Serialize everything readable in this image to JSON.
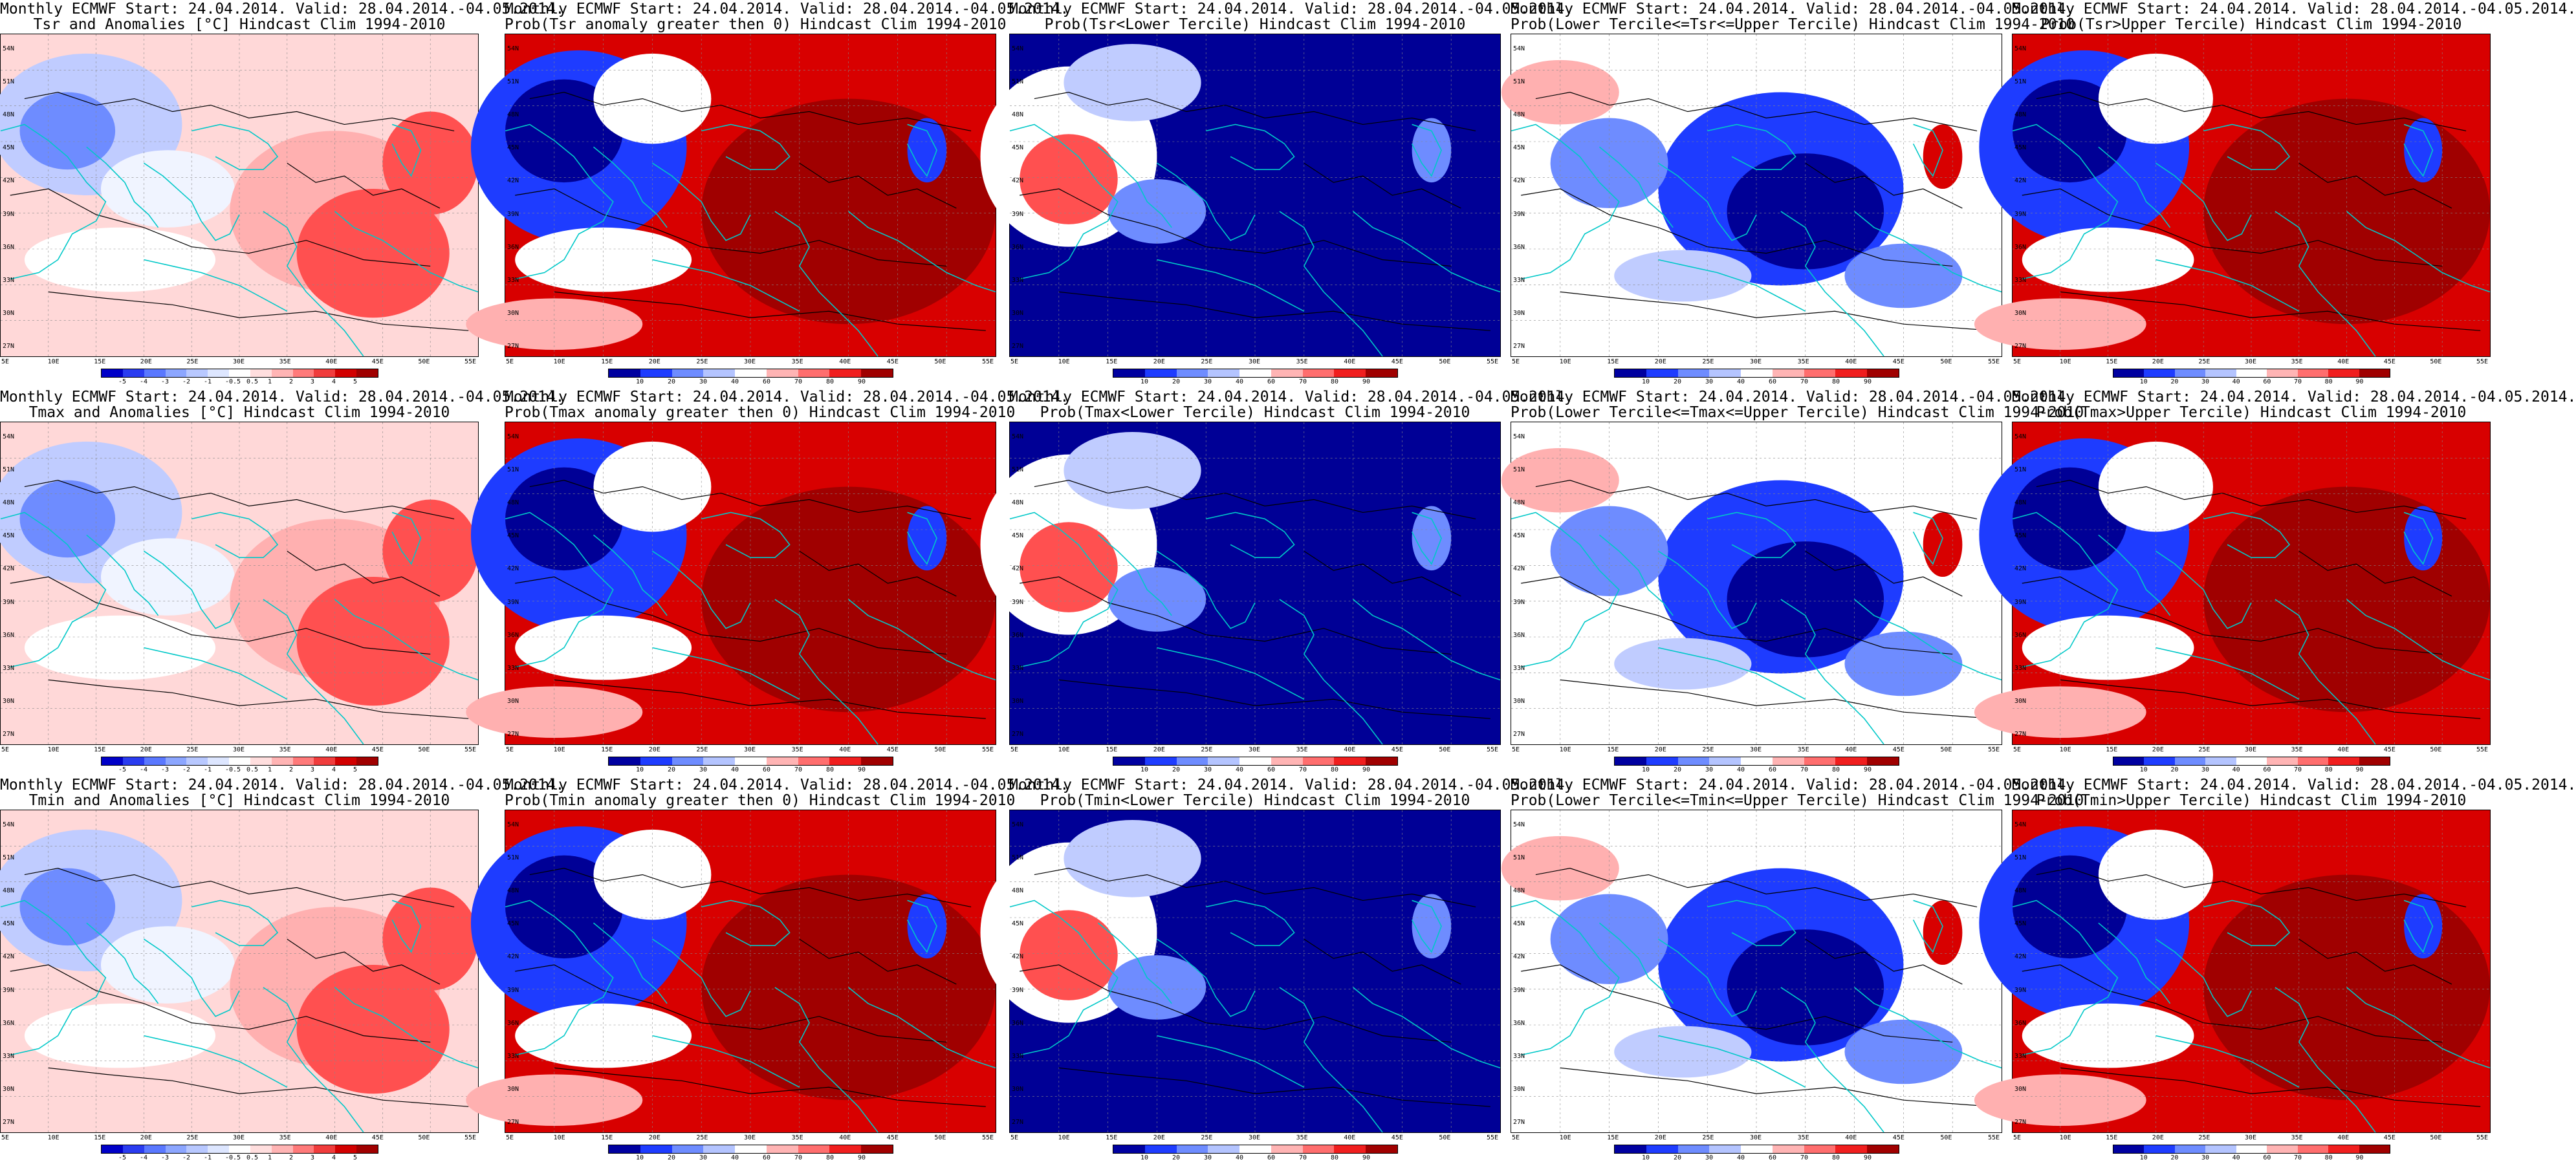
{
  "panels": [
    {
      "title1": "Monthly ECMWF Start: 24.04.2014. Valid: 28.04.2014.-04.05.2014.",
      "title2": "Tsr and Anomalies [°C] Hindcast Clim 1994-2010",
      "kind": "anom"
    },
    {
      "title1": "Monthly ECMWF Start: 24.04.2014. Valid: 28.04.2014.-04.05.2014.",
      "title2": "Prob(Tsr anomaly greater then 0) Hindcast Clim 1994-2010",
      "kind": "warm"
    },
    {
      "title1": "Monthly ECMWF Start: 24.04.2014. Valid: 28.04.2014.-04.05.2014.",
      "title2": "Prob(Tsr<Lower Tercile) Hindcast Clim 1994-2010",
      "kind": "cold"
    },
    {
      "title1": "Monthly ECMWF Start: 24.04.2014. Valid: 28.04.2014.-04.05.2014.",
      "title2": "Prob(Lower Tercile<=Tsr<=Upper Tercile) Hindcast Clim 1994-2010",
      "kind": "mid"
    },
    {
      "title1": "Monthly ECMWF Start: 24.04.2014. Valid: 28.04.2014.-04.05.2014.",
      "title2": "Prob(Tsr>Upper Tercile) Hindcast Clim 1994-2010",
      "kind": "warm"
    },
    {
      "title1": "Monthly ECMWF Start: 24.04.2014. Valid: 28.04.2014.-04.05.2014.",
      "title2": "Tmax and Anomalies [°C] Hindcast Clim 1994-2010",
      "kind": "anom"
    },
    {
      "title1": "Monthly ECMWF Start: 24.04.2014. Valid: 28.04.2014.-04.05.2014.",
      "title2": "Prob(Tmax anomaly greater then 0) Hindcast Clim 1994-2010",
      "kind": "warm"
    },
    {
      "title1": "Monthly ECMWF Start: 24.04.2014. Valid: 28.04.2014.-04.05.2014.",
      "title2": "Prob(Tmax<Lower Tercile) Hindcast Clim 1994-2010",
      "kind": "cold"
    },
    {
      "title1": "Monthly ECMWF Start: 24.04.2014. Valid: 28.04.2014.-04.05.2014.",
      "title2": "Prob(Lower Tercile<=Tmax<=Upper Tercile) Hindcast Clim 1994-2010",
      "kind": "mid"
    },
    {
      "title1": "Monthly ECMWF Start: 24.04.2014. Valid: 28.04.2014.-04.05.2014.",
      "title2": "Prob(Tmax>Upper Tercile) Hindcast Clim 1994-2010",
      "kind": "warm"
    },
    {
      "title1": "Monthly ECMWF Start: 24.04.2014. Valid: 28.04.2014.-04.05.2014.",
      "title2": "Tmin and Anomalies [°C] Hindcast Clim 1994-2010",
      "kind": "anom"
    },
    {
      "title1": "Monthly ECMWF Start: 24.04.2014. Valid: 28.04.2014.-04.05.2014.",
      "title2": "Prob(Tmin anomaly greater then 0) Hindcast Clim 1994-2010",
      "kind": "warm"
    },
    {
      "title1": "Monthly ECMWF Start: 24.04.2014. Valid: 28.04.2014.-04.05.2014.",
      "title2": "Prob(Tmin<Lower Tercile) Hindcast Clim 1994-2010",
      "kind": "cold"
    },
    {
      "title1": "Monthly ECMWF Start: 24.04.2014. Valid: 28.04.2014.-04.05.2014.",
      "title2": "Prob(Lower Tercile<=Tmin<=Upper Tercile) Hindcast Clim 1994-2010",
      "kind": "mid"
    },
    {
      "title1": "Monthly ECMWF Start: 24.04.2014. Valid: 28.04.2014.-04.05.2014.",
      "title2": "Prob(Tmin>Upper Tercile) Hindcast Clim 1994-2010",
      "kind": "warm"
    }
  ],
  "lat_labels": [
    "54N",
    "51N",
    "48N",
    "45N",
    "42N",
    "39N",
    "36N",
    "33N",
    "30N",
    "27N"
  ],
  "lon_labels": [
    "5E",
    "10E",
    "15E",
    "20E",
    "25E",
    "30E",
    "35E",
    "40E",
    "45E",
    "50E",
    "55E"
  ],
  "anom_colorbar": {
    "ticks": [
      "-5",
      "-4",
      "-3",
      "-2",
      "-1",
      "-0.5",
      "0.5",
      "1",
      "2",
      "3",
      "4",
      "5"
    ],
    "colors": [
      "#0000c8",
      "#2a3cf0",
      "#5a78ff",
      "#8ca6ff",
      "#b8c8ff",
      "#dde6ff",
      "#ffffff",
      "#ffdede",
      "#ffb4b4",
      "#ff7a7a",
      "#f03c3c",
      "#d20000",
      "#a00000"
    ]
  },
  "prob_colorbar": {
    "ticks": [
      "10",
      "20",
      "30",
      "40",
      "60",
      "70",
      "80",
      "90"
    ],
    "colors": [
      "#0000a0",
      "#1e3cff",
      "#6e8cff",
      "#b4c4ff",
      "#ffffff",
      "#ffb4b4",
      "#ff6e6e",
      "#f01e1e",
      "#a00000"
    ]
  },
  "colors": {
    "coast": "#00c8c8",
    "contour": "#000000"
  }
}
